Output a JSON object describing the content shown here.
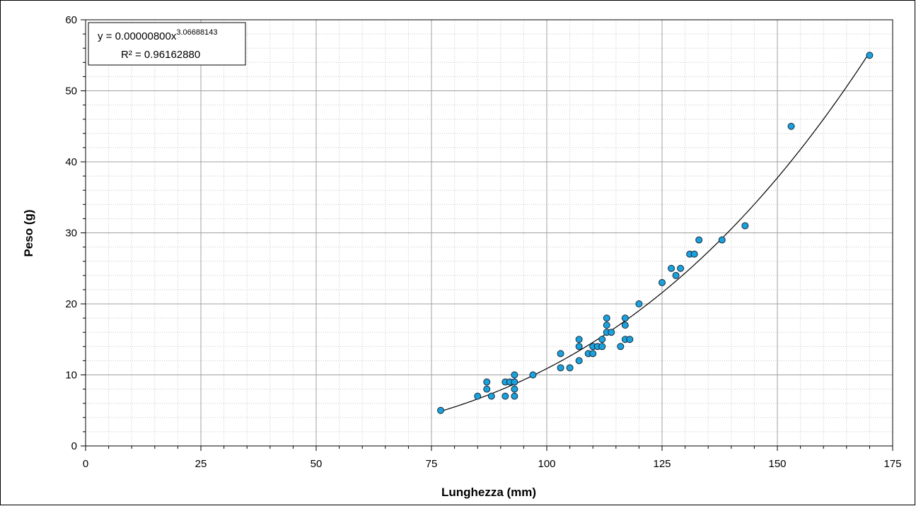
{
  "chart_data": {
    "type": "scatter",
    "xlabel": "Lunghezza (mm)",
    "ylabel": "Peso (g)",
    "x": [
      77,
      85,
      87,
      87,
      88,
      91,
      91,
      92,
      93,
      93,
      93,
      93,
      97,
      103,
      103,
      105,
      107,
      107,
      107,
      109,
      110,
      110,
      111,
      112,
      112,
      113,
      113,
      113,
      114,
      116,
      117,
      117,
      117,
      118,
      120,
      125,
      127,
      128,
      129,
      131,
      132,
      133,
      138,
      143,
      153,
      170
    ],
    "values": [
      5,
      7,
      9,
      8,
      7,
      9,
      7,
      9,
      10,
      9,
      8,
      7,
      10,
      13,
      11,
      11,
      15,
      14,
      12,
      13,
      14,
      13,
      14,
      14,
      15,
      18,
      17,
      16,
      16,
      14,
      18,
      17,
      15,
      15,
      20,
      23,
      25,
      24,
      25,
      27,
      27,
      29,
      29,
      31,
      45,
      55
    ],
    "color": "#1ba1dc",
    "xlim": [
      0,
      175
    ],
    "xticks": [
      0,
      25,
      50,
      75,
      100,
      125,
      150,
      175
    ],
    "ylim": [
      0,
      60
    ],
    "yticks": [
      0,
      10,
      20,
      30,
      40,
      50,
      60
    ],
    "xminor": 5,
    "yminor": 2,
    "grid": true,
    "trendline": {
      "type": "power",
      "lhs": "y = ",
      "coefficient": {
        "value": 8e-06,
        "label": "0.00000800"
      },
      "variable": "x",
      "exponent": 3.06688143,
      "r2": {
        "value": 0.9616288,
        "label": "R² = 0.96162880"
      },
      "color": "#000000"
    }
  }
}
